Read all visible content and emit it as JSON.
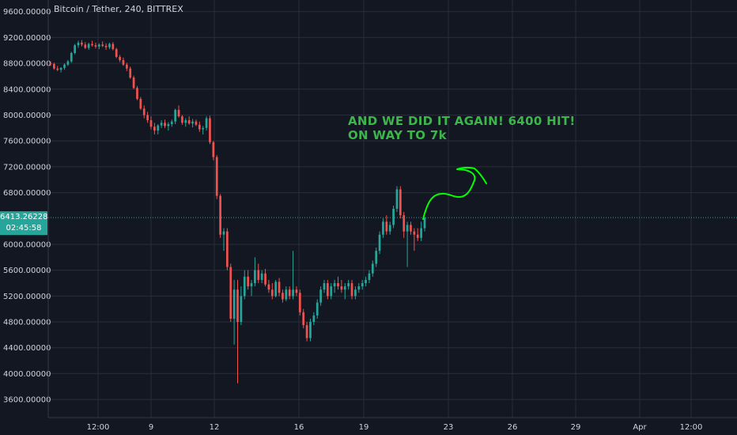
{
  "title": "Bitcoin / Tether, 240, BITTREX",
  "annotation_lines": [
    "AND WE DID IT AGAIN! 6400 HIT!",
    "ON WAY TO 7k"
  ],
  "last_price_label": "6413.26228",
  "countdown_label": "02:45:58",
  "colors": {
    "background": "#131722",
    "grid": "#2a2e39",
    "up": "#26a69a",
    "down": "#ef5350",
    "price_line": "#26a69a",
    "annotation": "#3cb54a",
    "drawing": "#00ff00",
    "text": "#d1d4dc"
  },
  "chart_data": {
    "type": "candlestick",
    "y_ticks": [
      "9600.00000",
      "9200.00000",
      "8800.00000",
      "8400.00000",
      "8000.00000",
      "7600.00000",
      "7200.00000",
      "6800.00000",
      "6000.00000",
      "5600.00000",
      "5200.00000",
      "4800.00000",
      "4400.00000",
      "4000.00000",
      "3600.00000"
    ],
    "y_tick_values": [
      9600,
      9200,
      8800,
      8400,
      8000,
      7600,
      7200,
      6800,
      6000,
      5600,
      5200,
      4800,
      4400,
      4000,
      3600
    ],
    "x_ticks": [
      "12:00",
      "9",
      "12",
      "16",
      "19",
      "23",
      "26",
      "29",
      "Apr",
      "12:00"
    ],
    "ylim": [
      3320,
      9780
    ],
    "last_price": 6413.26,
    "candles": [
      [
        8800,
        8830,
        8760,
        8790
      ],
      [
        8790,
        8810,
        8700,
        8720
      ],
      [
        8720,
        8760,
        8680,
        8700
      ],
      [
        8700,
        8740,
        8660,
        8730
      ],
      [
        8730,
        8800,
        8700,
        8780
      ],
      [
        8780,
        8850,
        8760,
        8830
      ],
      [
        8830,
        8980,
        8810,
        8960
      ],
      [
        8960,
        9100,
        8940,
        9080
      ],
      [
        9080,
        9150,
        9040,
        9120
      ],
      [
        9120,
        9160,
        9060,
        9090
      ],
      [
        9090,
        9130,
        9020,
        9040
      ],
      [
        9040,
        9120,
        9010,
        9100
      ],
      [
        9100,
        9150,
        9060,
        9080
      ],
      [
        9080,
        9120,
        9030,
        9060
      ],
      [
        9060,
        9110,
        9020,
        9090
      ],
      [
        9090,
        9140,
        9050,
        9070
      ],
      [
        9070,
        9110,
        9010,
        9050
      ],
      [
        9050,
        9120,
        9020,
        9100
      ],
      [
        9100,
        9130,
        9000,
        9020
      ],
      [
        9020,
        9040,
        8880,
        8900
      ],
      [
        8900,
        8930,
        8820,
        8850
      ],
      [
        8850,
        8890,
        8760,
        8780
      ],
      [
        8780,
        8810,
        8680,
        8720
      ],
      [
        8720,
        8750,
        8560,
        8580
      ],
      [
        8580,
        8610,
        8400,
        8420
      ],
      [
        8420,
        8450,
        8230,
        8250
      ],
      [
        8250,
        8280,
        8080,
        8100
      ],
      [
        8100,
        8150,
        7950,
        8000
      ],
      [
        8000,
        8050,
        7880,
        7920
      ],
      [
        7920,
        7980,
        7780,
        7820
      ],
      [
        7820,
        7880,
        7700,
        7760
      ],
      [
        7760,
        7860,
        7700,
        7840
      ],
      [
        7840,
        7920,
        7800,
        7880
      ],
      [
        7880,
        7930,
        7800,
        7830
      ],
      [
        7830,
        7890,
        7760,
        7860
      ],
      [
        7860,
        7930,
        7820,
        7900
      ],
      [
        7900,
        8100,
        7860,
        8080
      ],
      [
        8080,
        8150,
        7960,
        7980
      ],
      [
        7980,
        8000,
        7850,
        7880
      ],
      [
        7880,
        7950,
        7820,
        7920
      ],
      [
        7920,
        7980,
        7850,
        7870
      ],
      [
        7870,
        7940,
        7810,
        7900
      ],
      [
        7900,
        7930,
        7830,
        7850
      ],
      [
        7850,
        7900,
        7740,
        7780
      ],
      [
        7780,
        7830,
        7700,
        7800
      ],
      [
        7800,
        7980,
        7760,
        7950
      ],
      [
        7950,
        7990,
        7550,
        7580
      ],
      [
        7580,
        7600,
        7300,
        7350
      ],
      [
        7350,
        7380,
        6700,
        6750
      ],
      [
        6750,
        6780,
        6100,
        6150
      ],
      [
        6150,
        6250,
        5900,
        6200
      ],
      [
        6200,
        6250,
        5600,
        5650
      ],
      [
        5650,
        5700,
        4800,
        4850
      ],
      [
        4850,
        5450,
        4450,
        5300
      ],
      [
        5300,
        5450,
        3850,
        4800
      ],
      [
        4800,
        5350,
        4750,
        5200
      ],
      [
        5200,
        5600,
        5150,
        5500
      ],
      [
        5500,
        5600,
        5300,
        5350
      ],
      [
        5350,
        5450,
        5200,
        5400
      ],
      [
        5400,
        5800,
        5350,
        5600
      ],
      [
        5600,
        5700,
        5400,
        5450
      ],
      [
        5450,
        5600,
        5400,
        5550
      ],
      [
        5550,
        5620,
        5350,
        5380
      ],
      [
        5380,
        5450,
        5250,
        5300
      ],
      [
        5300,
        5400,
        5150,
        5200
      ],
      [
        5200,
        5450,
        5180,
        5420
      ],
      [
        5420,
        5480,
        5200,
        5250
      ],
      [
        5250,
        5300,
        5100,
        5150
      ],
      [
        5150,
        5350,
        5120,
        5300
      ],
      [
        5300,
        5350,
        5150,
        5200
      ],
      [
        5200,
        5900,
        5150,
        5300
      ],
      [
        5300,
        5350,
        5200,
        5250
      ],
      [
        5250,
        5300,
        4900,
        4950
      ],
      [
        4950,
        5000,
        4700,
        4750
      ],
      [
        4750,
        4800,
        4500,
        4550
      ],
      [
        4550,
        4850,
        4500,
        4800
      ],
      [
        4800,
        4950,
        4750,
        4900
      ],
      [
        4900,
        5150,
        4850,
        5100
      ],
      [
        5100,
        5350,
        5050,
        5300
      ],
      [
        5300,
        5450,
        5250,
        5400
      ],
      [
        5400,
        5450,
        5150,
        5200
      ],
      [
        5200,
        5400,
        5150,
        5350
      ],
      [
        5350,
        5450,
        5250,
        5400
      ],
      [
        5400,
        5500,
        5300,
        5350
      ],
      [
        5350,
        5450,
        5250,
        5300
      ],
      [
        5300,
        5400,
        5150,
        5350
      ],
      [
        5350,
        5450,
        5300,
        5400
      ],
      [
        5400,
        5450,
        5150,
        5200
      ],
      [
        5200,
        5350,
        5150,
        5300
      ],
      [
        5300,
        5400,
        5250,
        5350
      ],
      [
        5350,
        5450,
        5300,
        5400
      ],
      [
        5400,
        5500,
        5350,
        5450
      ],
      [
        5450,
        5600,
        5400,
        5550
      ],
      [
        5550,
        5750,
        5500,
        5700
      ],
      [
        5700,
        5950,
        5650,
        5900
      ],
      [
        5900,
        6200,
        5850,
        6150
      ],
      [
        6150,
        6400,
        6100,
        6350
      ],
      [
        6350,
        6450,
        6150,
        6200
      ],
      [
        6200,
        6350,
        6150,
        6300
      ],
      [
        6300,
        6600,
        6250,
        6550
      ],
      [
        6550,
        6900,
        6500,
        6850
      ],
      [
        6850,
        6900,
        6400,
        6450
      ],
      [
        6450,
        6500,
        6100,
        6200
      ],
      [
        6200,
        6350,
        5650,
        6300
      ],
      [
        6300,
        6350,
        6150,
        6200
      ],
      [
        6200,
        6250,
        5900,
        6150
      ],
      [
        6150,
        6250,
        6050,
        6100
      ],
      [
        6100,
        6350,
        6050,
        6250
      ],
      [
        6250,
        6420,
        6200,
        6413
      ]
    ]
  }
}
